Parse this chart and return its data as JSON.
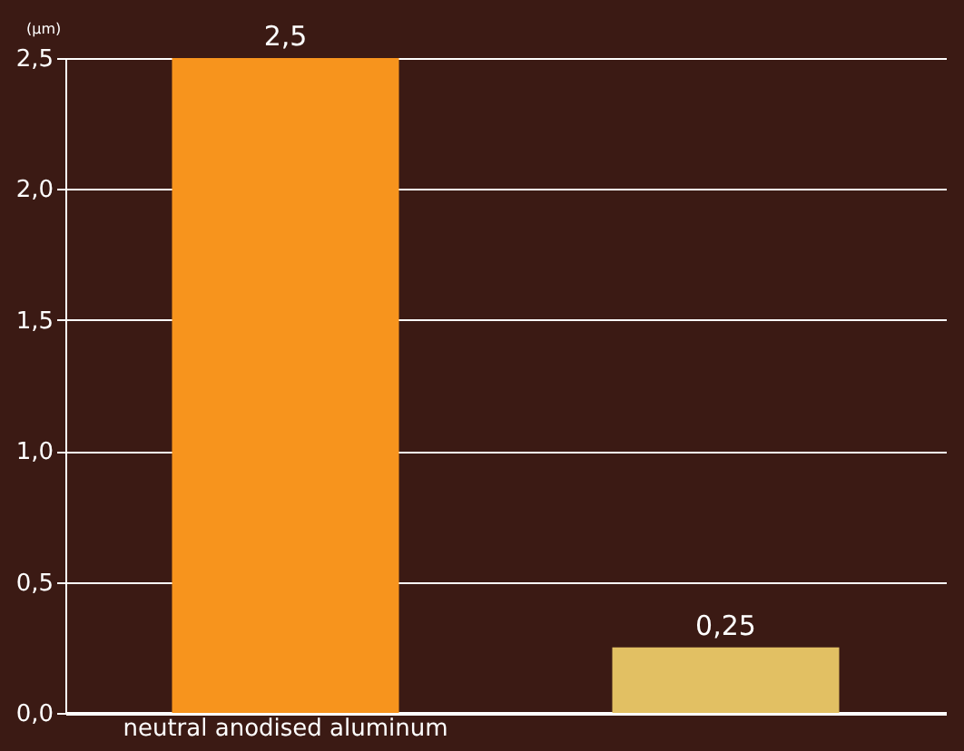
{
  "chart_data": {
    "type": "bar",
    "ylabel": "(µm)",
    "categories": [
      "neutral anodised aluminum",
      null
    ],
    "values": [
      2.5,
      0.25
    ],
    "colors": [
      "#f7941d",
      "#e2c063"
    ],
    "value_labels": [
      "2,5",
      "0,25"
    ],
    "ylim": [
      0,
      2.5
    ],
    "yticks": [
      {
        "value": 0,
        "label": "0,0"
      },
      {
        "value": 0.5,
        "label": "0,5"
      },
      {
        "value": 1,
        "label": "1,0"
      },
      {
        "value": 1.5,
        "label": "1,5"
      },
      {
        "value": 2,
        "label": "2,0"
      },
      {
        "value": 2.5,
        "label": "2,5"
      }
    ],
    "grid": "y"
  }
}
